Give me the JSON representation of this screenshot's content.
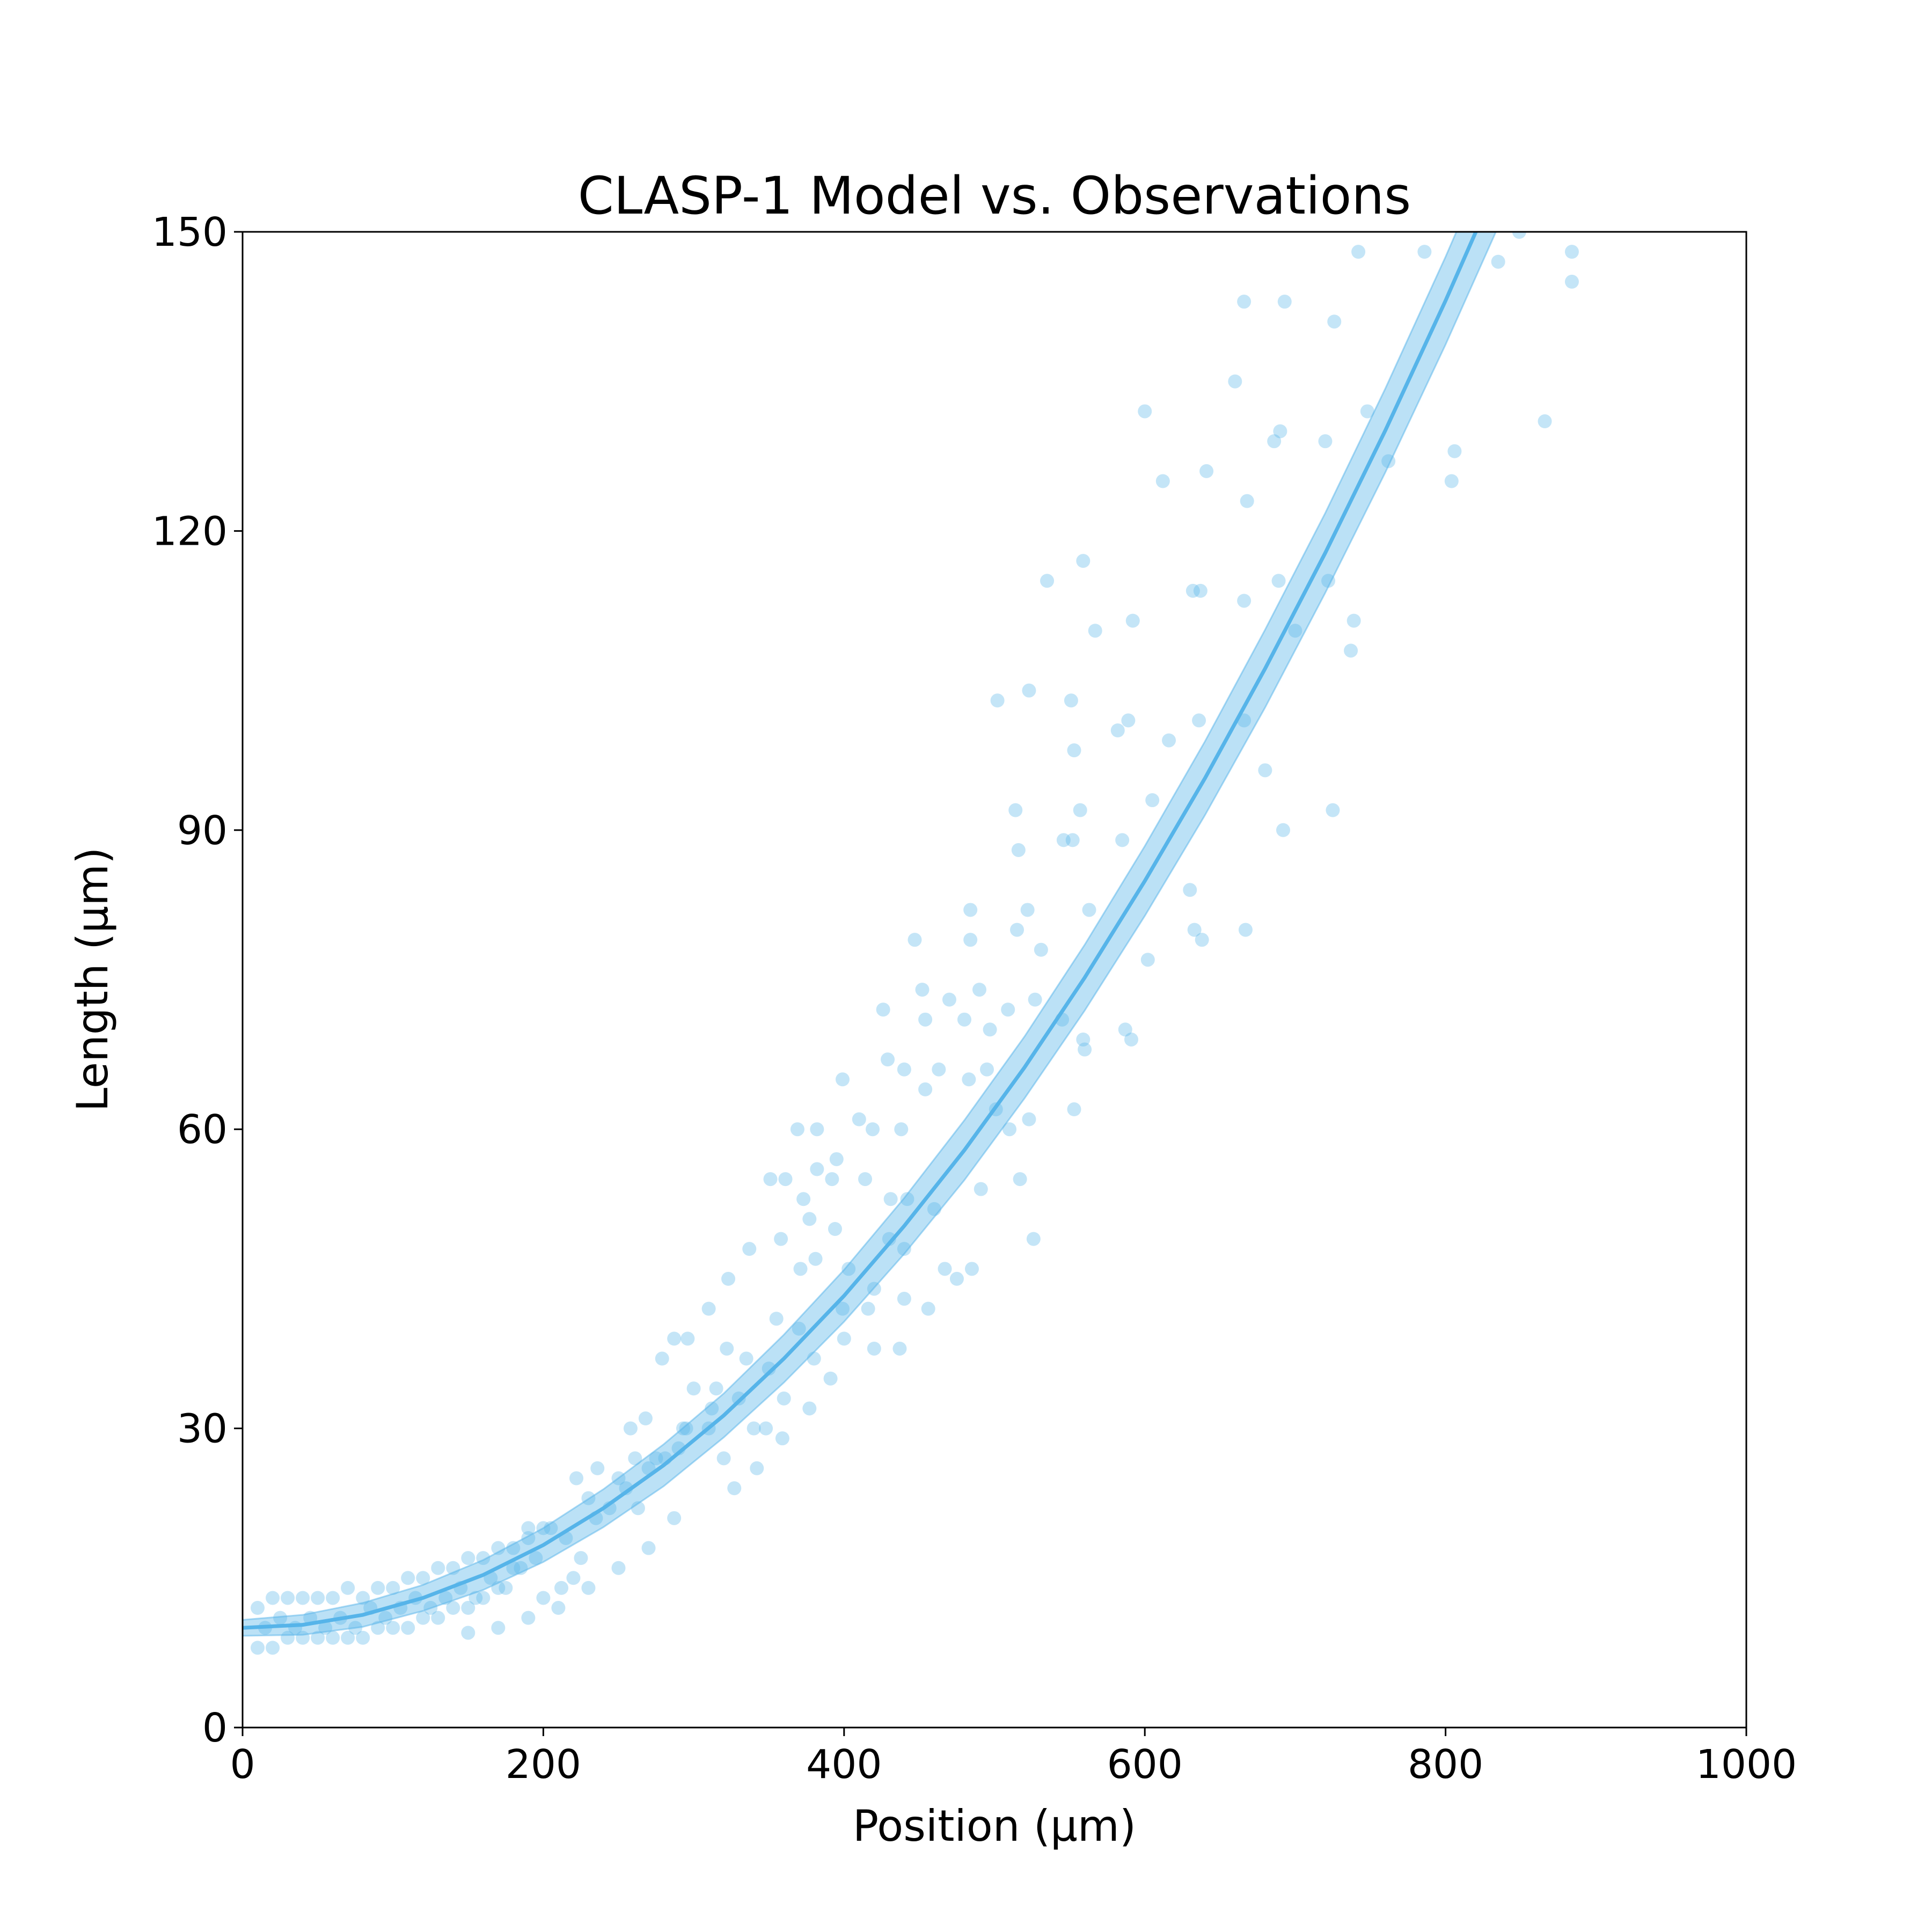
{
  "chart_data": {
    "type": "scatter",
    "title": "CLASP-1 Model vs. Observations",
    "xlabel": "Position (μm)",
    "ylabel": "Length (μm)",
    "xlim": [
      0,
      1000
    ],
    "ylim": [
      0,
      150
    ],
    "xticks": [
      0,
      200,
      400,
      600,
      800,
      1000
    ],
    "yticks": [
      0,
      30,
      60,
      90,
      120,
      150
    ],
    "color": "#56b4e9",
    "scatter": {
      "x": [
        600,
        612,
        641,
        660,
        666,
        693,
        726,
        686,
        690,
        668,
        748,
        762,
        806,
        804,
        866,
        884,
        884,
        835,
        849,
        786,
        742,
        720,
        689,
        722,
        700,
        739,
        737,
        632,
        637,
        666,
        559,
        535,
        567,
        592,
        523,
        502,
        551,
        553,
        589,
        582,
        616,
        636,
        666,
        680,
        605,
        514,
        557,
        516,
        546,
        552,
        585,
        692,
        725,
        630,
        563,
        484,
        522,
        515,
        633,
        638,
        667,
        602,
        531,
        447,
        484,
        452,
        470,
        490,
        527,
        509,
        426,
        497,
        480,
        454,
        545,
        559,
        560,
        587,
        591,
        429,
        463,
        440,
        495,
        454,
        483,
        501,
        523,
        553,
        510,
        517,
        526,
        485,
        491,
        467,
        475,
        456,
        440,
        410,
        419,
        438,
        369,
        382,
        399,
        395,
        382,
        351,
        361,
        392,
        373,
        414,
        431,
        442,
        377,
        394,
        381,
        358,
        337,
        371,
        403,
        430,
        399,
        416,
        437,
        420,
        391,
        377,
        359,
        342,
        327,
        348,
        323,
        310,
        322,
        296,
        287,
        279,
        300,
        312,
        293,
        268,
        258,
        281,
        261,
        236,
        222,
        244,
        263,
        287,
        225,
        212,
        200,
        220,
        205,
        190,
        180,
        170,
        160,
        150,
        140,
        130,
        120,
        110,
        100,
        90,
        80,
        70,
        60,
        50,
        40,
        30,
        20,
        10,
        10,
        20,
        30,
        40,
        50,
        60,
        70,
        80,
        90,
        100,
        110,
        120,
        130,
        140,
        150,
        160,
        170,
        180,
        190,
        200,
        150,
        170,
        190,
        210,
        230,
        250,
        270,
        230,
        250,
        270,
        290,
        310,
        330,
        350,
        370,
        320,
        340,
        360,
        380,
        400,
        420,
        440,
        460,
        15,
        25,
        35,
        45,
        55,
        65,
        75,
        85,
        95,
        105,
        115,
        125,
        135,
        145,
        155,
        165,
        175,
        185,
        195,
        215,
        235,
        255,
        275,
        295,
        315,
        335,
        355
      ],
      "y": [
        132,
        125,
        126,
        135,
        143,
        143,
        141,
        129,
        130,
        123,
        132,
        127,
        128,
        125,
        131,
        145,
        148,
        147,
        150,
        148,
        148,
        129,
        115,
        115,
        110,
        111,
        108,
        114,
        114,
        113,
        117,
        115,
        110,
        111,
        104,
        103,
        103,
        98,
        101,
        100,
        99,
        101,
        101,
        96,
        93,
        92,
        92,
        88,
        89,
        89,
        89,
        90,
        92,
        84,
        82,
        82,
        82,
        80,
        80,
        79,
        80,
        77,
        78,
        79,
        79,
        74,
        73,
        74,
        73,
        72,
        72,
        70,
        71,
        71,
        71,
        69,
        68,
        70,
        69,
        67,
        66,
        66,
        66,
        64,
        65,
        62,
        61,
        62,
        60,
        55,
        49,
        46,
        54,
        46,
        45,
        42,
        43,
        61,
        60,
        60,
        60,
        60,
        65,
        57,
        56,
        55,
        55,
        55,
        53,
        55,
        53,
        53,
        51,
        50,
        47,
        49,
        48,
        46,
        46,
        49,
        42,
        42,
        38,
        38,
        35,
        32,
        29,
        26,
        24,
        30,
        45,
        42,
        38,
        39,
        39,
        37,
        34,
        32,
        30,
        31,
        30,
        27,
        27,
        26,
        25,
        22,
        22,
        21,
        17,
        14,
        13,
        15,
        20,
        19,
        16,
        14,
        13,
        12,
        12,
        11,
        11,
        10,
        10,
        10,
        9,
        9,
        9,
        9,
        9,
        9,
        8,
        8,
        12,
        13,
        13,
        13,
        13,
        13,
        14,
        13,
        14,
        14,
        15,
        15,
        16,
        16,
        17,
        17,
        18,
        18,
        20,
        20,
        9.5,
        10,
        11,
        12,
        14,
        16,
        18,
        23,
        25,
        26,
        28,
        30,
        33,
        36,
        40,
        27,
        30,
        33,
        37,
        39,
        44,
        48,
        52,
        10,
        11,
        10,
        11,
        10,
        11,
        10,
        12,
        11,
        12,
        13,
        12,
        13,
        14,
        13,
        15,
        14,
        16,
        17,
        19,
        21,
        24,
        27,
        30,
        34,
        37,
        41
      ]
    },
    "model": {
      "x": [
        0,
        40,
        80,
        120,
        160,
        200,
        240,
        280,
        320,
        360,
        400,
        440,
        480,
        520,
        560,
        600,
        640,
        680,
        720,
        760,
        800,
        840
      ],
      "values": [
        10.0,
        10.3,
        11.3,
        13.0,
        15.3,
        18.3,
        22.0,
        26.3,
        31.3,
        37.0,
        43.3,
        50.3,
        57.9,
        66.2,
        75.2,
        84.9,
        95.2,
        106.2,
        117.8,
        130.1,
        143.1,
        156.8
      ],
      "lower": [
        9.2,
        9.3,
        10.1,
        11.7,
        13.8,
        16.6,
        20.1,
        24.2,
        29.1,
        34.6,
        40.7,
        47.5,
        54.9,
        63.1,
        71.9,
        81.4,
        91.5,
        102.3,
        113.8,
        125.9,
        138.7,
        152.2
      ],
      "upper": [
        10.8,
        11.3,
        12.5,
        14.3,
        16.8,
        20.0,
        23.9,
        28.4,
        33.5,
        39.4,
        45.9,
        53.1,
        60.9,
        69.3,
        78.5,
        88.4,
        98.9,
        110.1,
        121.8,
        134.3,
        147.5,
        161.4
      ]
    }
  }
}
